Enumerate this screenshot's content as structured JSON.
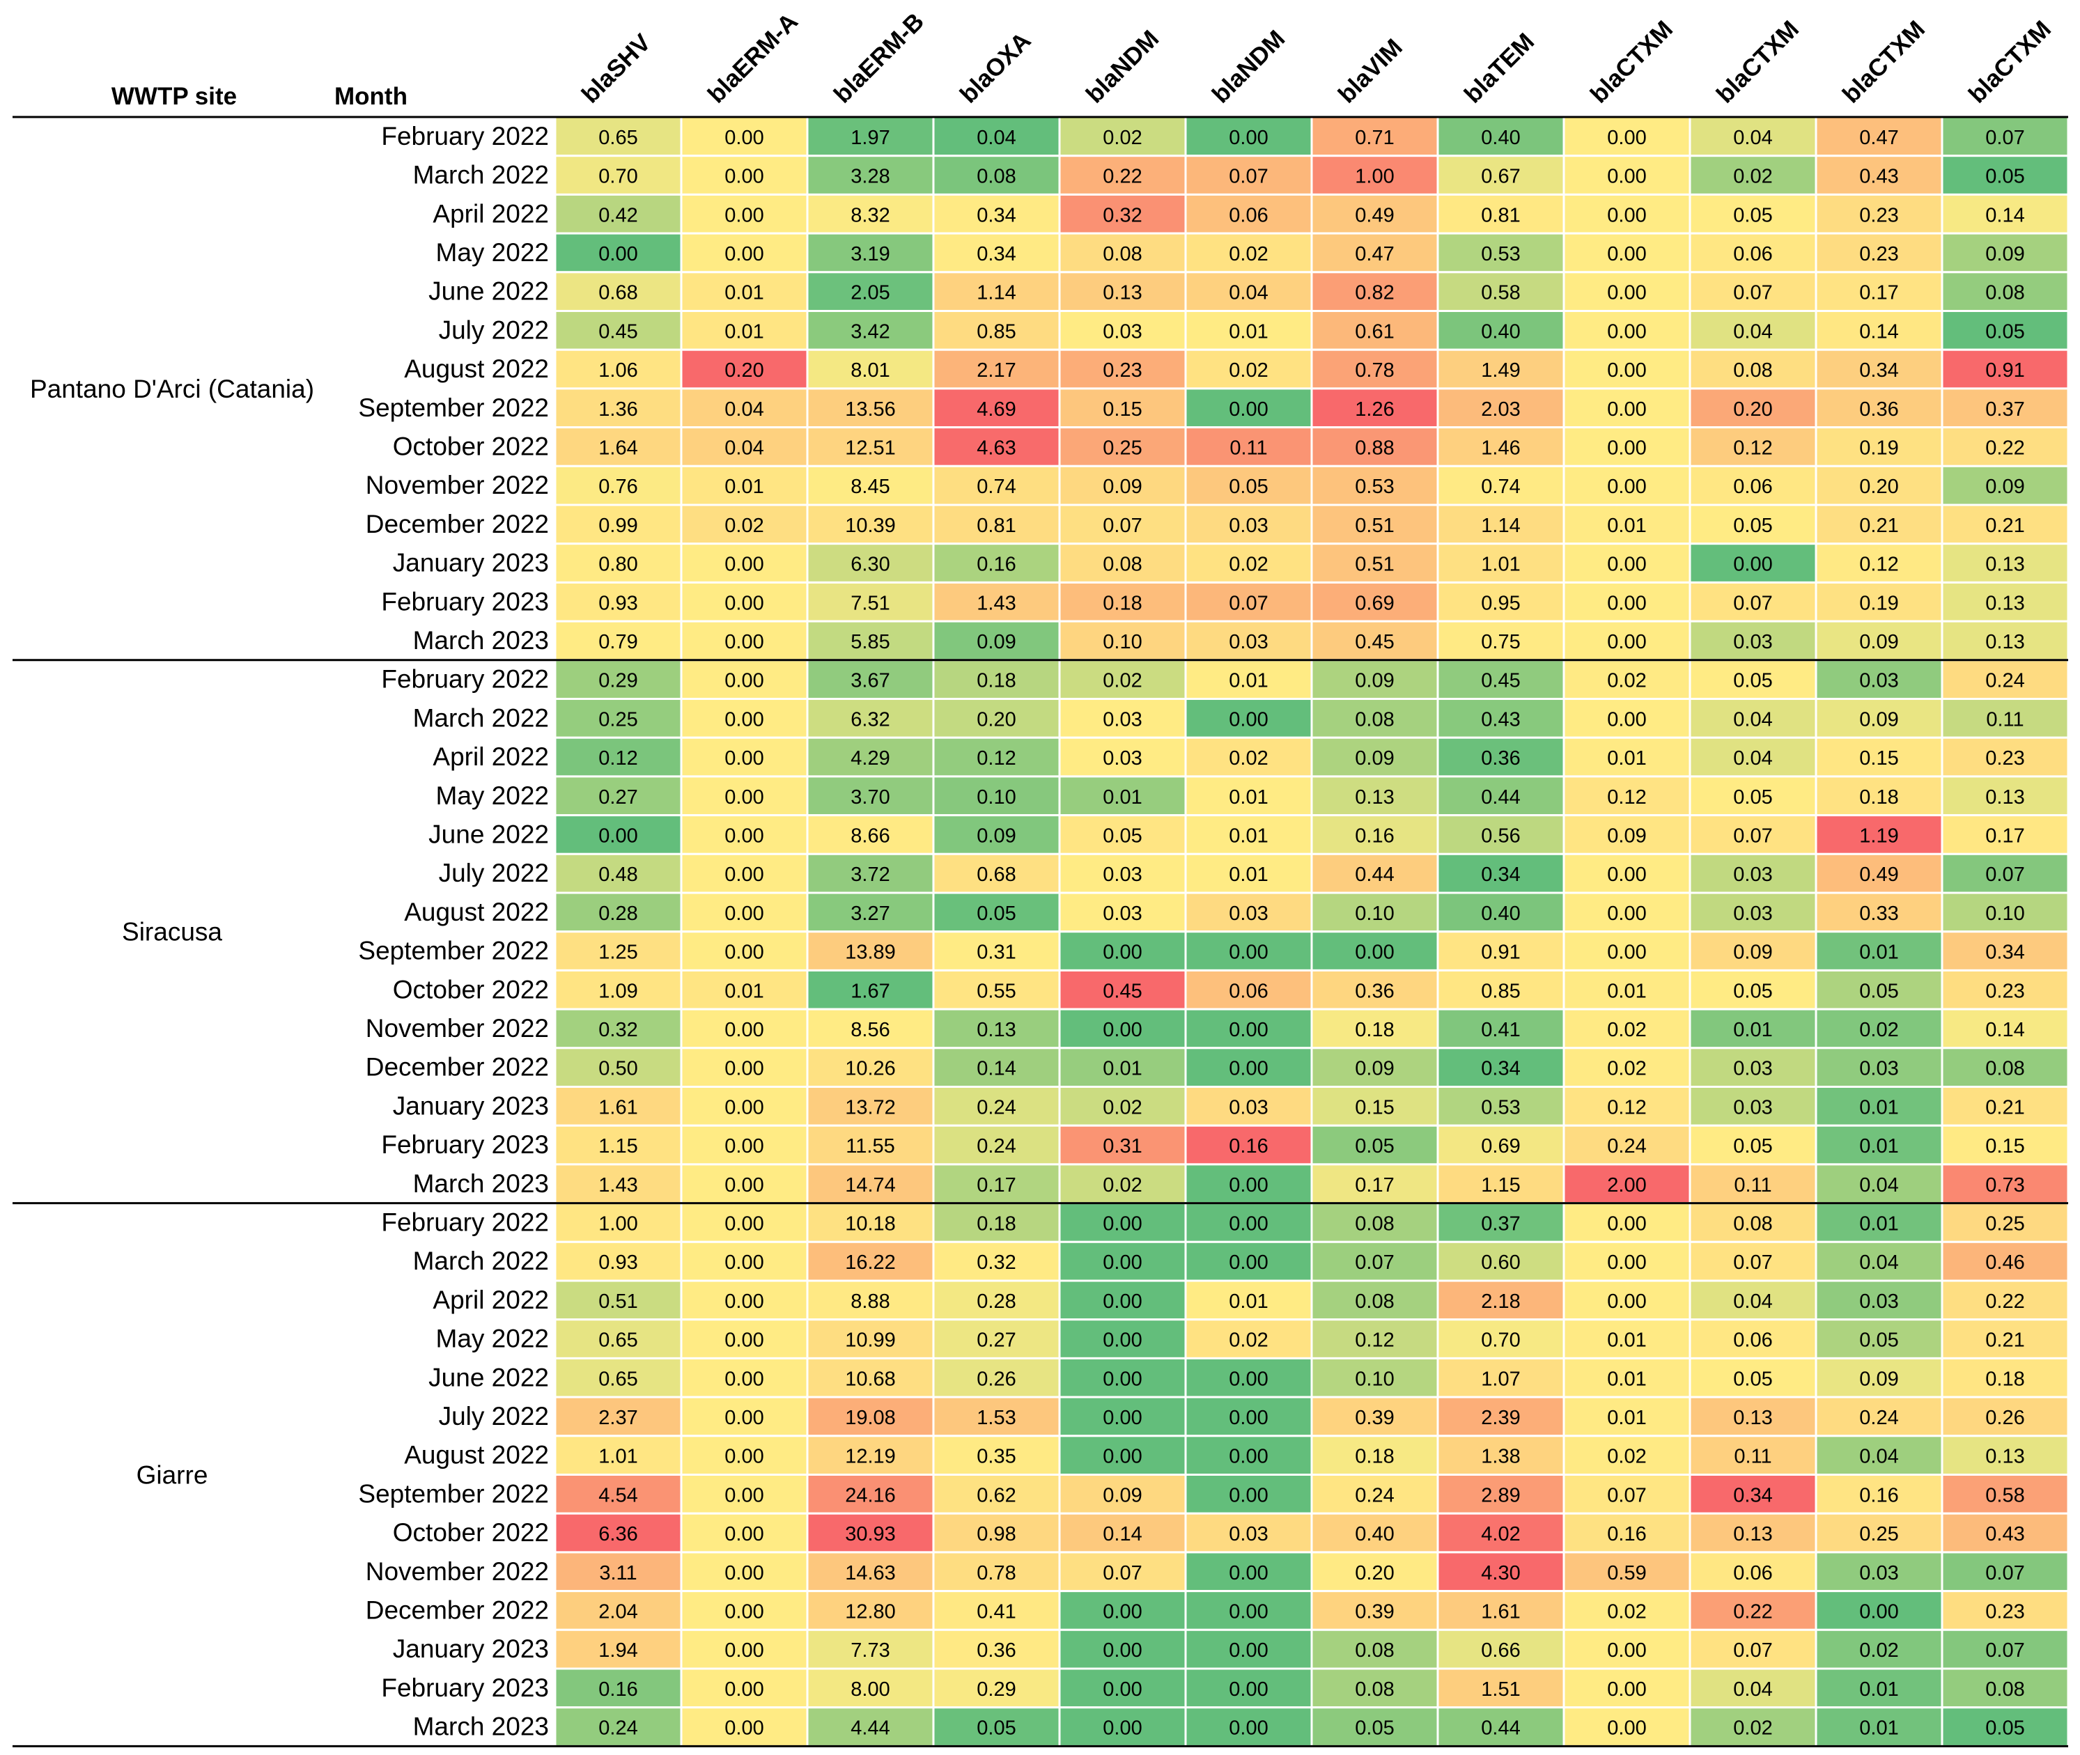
{
  "chart_data": {
    "type": "heatmap",
    "headers": {
      "site": "WWTP site",
      "month": "Month"
    },
    "columns": [
      "blaSHV",
      "blaERM-A",
      "blaERM-B",
      "blaOXA",
      "blaNDM",
      "blaNDM",
      "blaVIM",
      "blaTEM",
      "blaCTXM",
      "blaCTXM",
      "blaCTXM",
      "blaCTXM"
    ],
    "months": [
      "February 2022",
      "March 2022",
      "April 2022",
      "May 2022",
      "June 2022",
      "July 2022",
      "August 2022",
      "September 2022",
      "October 2022",
      "November 2022",
      "December 2022",
      "January 2023",
      "February 2023",
      "March 2023"
    ],
    "color_scale": {
      "low": "#63be7b",
      "mid": "#ffeb84",
      "high": "#f8696b"
    },
    "groups": [
      {
        "site": "Pantano D'Arci (Catania)",
        "rows": [
          [
            "0.65",
            "0.00",
            "1.97",
            "0.04",
            "0.02",
            "0.00",
            "0.71",
            "0.40",
            "0.00",
            "0.04",
            "0.47",
            "0.07"
          ],
          [
            "0.70",
            "0.00",
            "3.28",
            "0.08",
            "0.22",
            "0.07",
            "1.00",
            "0.67",
            "0.00",
            "0.02",
            "0.43",
            "0.05"
          ],
          [
            "0.42",
            "0.00",
            "8.32",
            "0.34",
            "0.32",
            "0.06",
            "0.49",
            "0.81",
            "0.00",
            "0.05",
            "0.23",
            "0.14"
          ],
          [
            "0.00",
            "0.00",
            "3.19",
            "0.34",
            "0.08",
            "0.02",
            "0.47",
            "0.53",
            "0.00",
            "0.06",
            "0.23",
            "0.09"
          ],
          [
            "0.68",
            "0.01",
            "2.05",
            "1.14",
            "0.13",
            "0.04",
            "0.82",
            "0.58",
            "0.00",
            "0.07",
            "0.17",
            "0.08"
          ],
          [
            "0.45",
            "0.01",
            "3.42",
            "0.85",
            "0.03",
            "0.01",
            "0.61",
            "0.40",
            "0.00",
            "0.04",
            "0.14",
            "0.05"
          ],
          [
            "1.06",
            "0.20",
            "8.01",
            "2.17",
            "0.23",
            "0.02",
            "0.78",
            "1.49",
            "0.00",
            "0.08",
            "0.34",
            "0.91"
          ],
          [
            "1.36",
            "0.04",
            "13.56",
            "4.69",
            "0.15",
            "0.00",
            "1.26",
            "2.03",
            "0.00",
            "0.20",
            "0.36",
            "0.37"
          ],
          [
            "1.64",
            "0.04",
            "12.51",
            "4.63",
            "0.25",
            "0.11",
            "0.88",
            "1.46",
            "0.00",
            "0.12",
            "0.19",
            "0.22"
          ],
          [
            "0.76",
            "0.01",
            "8.45",
            "0.74",
            "0.09",
            "0.05",
            "0.53",
            "0.74",
            "0.00",
            "0.06",
            "0.20",
            "0.09"
          ],
          [
            "0.99",
            "0.02",
            "10.39",
            "0.81",
            "0.07",
            "0.03",
            "0.51",
            "1.14",
            "0.01",
            "0.05",
            "0.21",
            "0.21"
          ],
          [
            "0.80",
            "0.00",
            "6.30",
            "0.16",
            "0.08",
            "0.02",
            "0.51",
            "1.01",
            "0.00",
            "0.00",
            "0.12",
            "0.13"
          ],
          [
            "0.93",
            "0.00",
            "7.51",
            "1.43",
            "0.18",
            "0.07",
            "0.69",
            "0.95",
            "0.00",
            "0.07",
            "0.19",
            "0.13"
          ],
          [
            "0.79",
            "0.00",
            "5.85",
            "0.09",
            "0.10",
            "0.03",
            "0.45",
            "0.75",
            "0.00",
            "0.03",
            "0.09",
            "0.13"
          ]
        ]
      },
      {
        "site": "Siracusa",
        "rows": [
          [
            "0.29",
            "0.00",
            "3.67",
            "0.18",
            "0.02",
            "0.01",
            "0.09",
            "0.45",
            "0.02",
            "0.05",
            "0.03",
            "0.24"
          ],
          [
            "0.25",
            "0.00",
            "6.32",
            "0.20",
            "0.03",
            "0.00",
            "0.08",
            "0.43",
            "0.00",
            "0.04",
            "0.09",
            "0.11"
          ],
          [
            "0.12",
            "0.00",
            "4.29",
            "0.12",
            "0.03",
            "0.02",
            "0.09",
            "0.36",
            "0.01",
            "0.04",
            "0.15",
            "0.23"
          ],
          [
            "0.27",
            "0.00",
            "3.70",
            "0.10",
            "0.01",
            "0.01",
            "0.13",
            "0.44",
            "0.12",
            "0.05",
            "0.18",
            "0.13"
          ],
          [
            "0.00",
            "0.00",
            "8.66",
            "0.09",
            "0.05",
            "0.01",
            "0.16",
            "0.56",
            "0.09",
            "0.07",
            "1.19",
            "0.17"
          ],
          [
            "0.48",
            "0.00",
            "3.72",
            "0.68",
            "0.03",
            "0.01",
            "0.44",
            "0.34",
            "0.00",
            "0.03",
            "0.49",
            "0.07"
          ],
          [
            "0.28",
            "0.00",
            "3.27",
            "0.05",
            "0.03",
            "0.03",
            "0.10",
            "0.40",
            "0.00",
            "0.03",
            "0.33",
            "0.10"
          ],
          [
            "1.25",
            "0.00",
            "13.89",
            "0.31",
            "0.00",
            "0.00",
            "0.00",
            "0.91",
            "0.00",
            "0.09",
            "0.01",
            "0.34"
          ],
          [
            "1.09",
            "0.01",
            "1.67",
            "0.55",
            "0.45",
            "0.06",
            "0.36",
            "0.85",
            "0.01",
            "0.05",
            "0.05",
            "0.23"
          ],
          [
            "0.32",
            "0.00",
            "8.56",
            "0.13",
            "0.00",
            "0.00",
            "0.18",
            "0.41",
            "0.02",
            "0.01",
            "0.02",
            "0.14"
          ],
          [
            "0.50",
            "0.00",
            "10.26",
            "0.14",
            "0.01",
            "0.00",
            "0.09",
            "0.34",
            "0.02",
            "0.03",
            "0.03",
            "0.08"
          ],
          [
            "1.61",
            "0.00",
            "13.72",
            "0.24",
            "0.02",
            "0.03",
            "0.15",
            "0.53",
            "0.12",
            "0.03",
            "0.01",
            "0.21"
          ],
          [
            "1.15",
            "0.00",
            "11.55",
            "0.24",
            "0.31",
            "0.16",
            "0.05",
            "0.69",
            "0.24",
            "0.05",
            "0.01",
            "0.15"
          ],
          [
            "1.43",
            "0.00",
            "14.74",
            "0.17",
            "0.02",
            "0.00",
            "0.17",
            "1.15",
            "2.00",
            "0.11",
            "0.04",
            "0.73"
          ]
        ]
      },
      {
        "site": "Giarre",
        "rows": [
          [
            "1.00",
            "0.00",
            "10.18",
            "0.18",
            "0.00",
            "0.00",
            "0.08",
            "0.37",
            "0.00",
            "0.08",
            "0.01",
            "0.25"
          ],
          [
            "0.93",
            "0.00",
            "16.22",
            "0.32",
            "0.00",
            "0.00",
            "0.07",
            "0.60",
            "0.00",
            "0.07",
            "0.04",
            "0.46"
          ],
          [
            "0.51",
            "0.00",
            "8.88",
            "0.28",
            "0.00",
            "0.01",
            "0.08",
            "2.18",
            "0.00",
            "0.04",
            "0.03",
            "0.22"
          ],
          [
            "0.65",
            "0.00",
            "10.99",
            "0.27",
            "0.00",
            "0.02",
            "0.12",
            "0.70",
            "0.01",
            "0.06",
            "0.05",
            "0.21"
          ],
          [
            "0.65",
            "0.00",
            "10.68",
            "0.26",
            "0.00",
            "0.00",
            "0.10",
            "1.07",
            "0.01",
            "0.05",
            "0.09",
            "0.18"
          ],
          [
            "2.37",
            "0.00",
            "19.08",
            "1.53",
            "0.00",
            "0.00",
            "0.39",
            "2.39",
            "0.01",
            "0.13",
            "0.24",
            "0.26"
          ],
          [
            "1.01",
            "0.00",
            "12.19",
            "0.35",
            "0.00",
            "0.00",
            "0.18",
            "1.38",
            "0.02",
            "0.11",
            "0.04",
            "0.13"
          ],
          [
            "4.54",
            "0.00",
            "24.16",
            "0.62",
            "0.09",
            "0.00",
            "0.24",
            "2.89",
            "0.07",
            "0.34",
            "0.16",
            "0.58"
          ],
          [
            "6.36",
            "0.00",
            "30.93",
            "0.98",
            "0.14",
            "0.03",
            "0.40",
            "4.02",
            "0.16",
            "0.13",
            "0.25",
            "0.43"
          ],
          [
            "3.11",
            "0.00",
            "14.63",
            "0.78",
            "0.07",
            "0.00",
            "0.20",
            "4.30",
            "0.59",
            "0.06",
            "0.03",
            "0.07"
          ],
          [
            "2.04",
            "0.00",
            "12.80",
            "0.41",
            "0.00",
            "0.00",
            "0.39",
            "1.61",
            "0.02",
            "0.22",
            "0.00",
            "0.23"
          ],
          [
            "1.94",
            "0.00",
            "7.73",
            "0.36",
            "0.00",
            "0.00",
            "0.08",
            "0.66",
            "0.00",
            "0.07",
            "0.02",
            "0.07"
          ],
          [
            "0.16",
            "0.00",
            "8.00",
            "0.29",
            "0.00",
            "0.00",
            "0.08",
            "1.51",
            "0.00",
            "0.04",
            "0.01",
            "0.08"
          ],
          [
            "0.24",
            "0.00",
            "4.44",
            "0.05",
            "0.00",
            "0.00",
            "0.05",
            "0.44",
            "0.00",
            "0.02",
            "0.01",
            "0.05"
          ]
        ]
      }
    ]
  }
}
